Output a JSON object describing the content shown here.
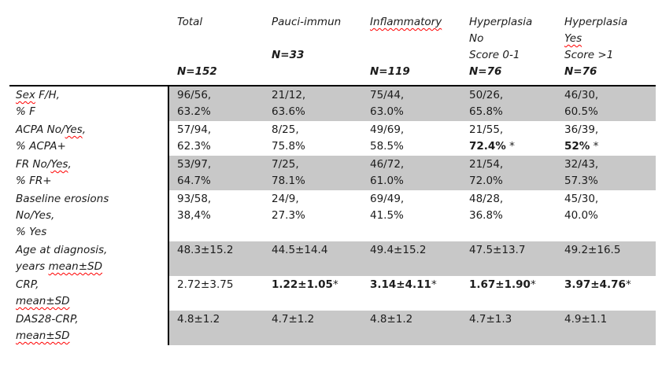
{
  "styles": {
    "page_bg": "#ffffff",
    "text_color": "#1c1c1c",
    "shade_color": "#c8c8c8",
    "squiggle_color": "#ff0000"
  },
  "table": {
    "header": {
      "label_column": "",
      "columns": [
        {
          "id": "total",
          "lines": [
            [
              {
                "t": "Total"
              }
            ],
            [],
            [],
            [
              {
                "t": "N=152",
                "b": true
              }
            ]
          ]
        },
        {
          "id": "pauci-immun",
          "lines": [
            [
              {
                "t": "Pauci-immun"
              }
            ],
            [],
            [
              {
                "t": "N=33",
                "b": true
              }
            ],
            []
          ]
        },
        {
          "id": "inflammatory",
          "lines": [
            [
              {
                "t": "Inflammatory",
                "sq": true
              }
            ],
            [],
            [],
            [
              {
                "t": "N=119",
                "b": true
              }
            ]
          ]
        },
        {
          "id": "hyperplasia-no",
          "lines": [
            [
              {
                "t": "Hyperplasia"
              }
            ],
            [
              {
                "t": "No"
              }
            ],
            [
              {
                "t": "Score 0-1"
              }
            ],
            [
              {
                "t": "N=76",
                "b": true
              }
            ]
          ]
        },
        {
          "id": "hyperplasia-yes",
          "lines": [
            [
              {
                "t": "Hyperplasia"
              }
            ],
            [
              {
                "t": "Yes",
                "sq": true
              }
            ],
            [
              {
                "t": "Score >1"
              }
            ],
            [
              {
                "t": "N=76",
                "b": true
              }
            ]
          ]
        }
      ]
    },
    "rows": [
      {
        "id": "sex",
        "shaded": true,
        "label": [
          [
            {
              "t": "Sex",
              "sq": true
            },
            {
              "t": " F/H,"
            }
          ],
          [
            {
              "t": "% F"
            }
          ]
        ],
        "cells": [
          [
            [
              {
                "t": "96/56,"
              }
            ],
            [
              {
                "t": "63.2%"
              }
            ]
          ],
          [
            [
              {
                "t": "21/12,"
              }
            ],
            [
              {
                "t": "63.6%"
              }
            ]
          ],
          [
            [
              {
                "t": "75/44,"
              }
            ],
            [
              {
                "t": "63.0%"
              }
            ]
          ],
          [
            [
              {
                "t": "50/26,"
              }
            ],
            [
              {
                "t": "65.8%"
              }
            ]
          ],
          [
            [
              {
                "t": "46/30,"
              }
            ],
            [
              {
                "t": "60.5%"
              }
            ]
          ]
        ]
      },
      {
        "id": "acpa",
        "shaded": false,
        "label": [
          [
            {
              "t": "ACPA No/"
            },
            {
              "t": "Yes",
              "sq": true
            },
            {
              "t": ","
            }
          ],
          [
            {
              "t": "% ACPA+"
            }
          ]
        ],
        "cells": [
          [
            [
              {
                "t": "57/94,"
              }
            ],
            [
              {
                "t": "62.3%"
              }
            ]
          ],
          [
            [
              {
                "t": "8/25,"
              }
            ],
            [
              {
                "t": "75.8%"
              }
            ]
          ],
          [
            [
              {
                "t": "49/69,"
              }
            ],
            [
              {
                "t": "58.5%"
              }
            ]
          ],
          [
            [
              {
                "t": "21/55,"
              }
            ],
            [
              {
                "t": "72.4%",
                "b": true
              },
              {
                "t": " *"
              }
            ]
          ],
          [
            [
              {
                "t": "36/39,"
              }
            ],
            [
              {
                "t": "52%",
                "b": true
              },
              {
                "t": " *"
              }
            ]
          ]
        ]
      },
      {
        "id": "fr",
        "shaded": true,
        "label": [
          [
            {
              "t": "FR No/"
            },
            {
              "t": "Yes",
              "sq": true
            },
            {
              "t": ","
            }
          ],
          [
            {
              "t": "% FR+"
            }
          ]
        ],
        "cells": [
          [
            [
              {
                "t": "53/97,"
              }
            ],
            [
              {
                "t": "64.7%"
              }
            ]
          ],
          [
            [
              {
                "t": "7/25,"
              }
            ],
            [
              {
                "t": "78.1%"
              }
            ]
          ],
          [
            [
              {
                "t": "46/72,"
              }
            ],
            [
              {
                "t": "61.0%"
              }
            ]
          ],
          [
            [
              {
                "t": "21/54,"
              }
            ],
            [
              {
                "t": "72.0%"
              }
            ]
          ],
          [
            [
              {
                "t": "32/43,"
              }
            ],
            [
              {
                "t": "57.3%"
              }
            ]
          ]
        ]
      },
      {
        "id": "baseline-erosions",
        "shaded": false,
        "label": [
          [
            {
              "t": "Baseline erosions"
            }
          ],
          [
            {
              "t": "No/Yes,"
            }
          ],
          [
            {
              "t": "% Yes"
            }
          ]
        ],
        "cells": [
          [
            [
              {
                "t": "93/58,"
              }
            ],
            [
              {
                "t": "38,4%"
              }
            ]
          ],
          [
            [
              {
                "t": "24/9,"
              }
            ],
            [
              {
                "t": "27.3%"
              }
            ]
          ],
          [
            [
              {
                "t": "69/49,"
              }
            ],
            [
              {
                "t": "41.5%"
              }
            ]
          ],
          [
            [
              {
                "t": "48/28,"
              }
            ],
            [
              {
                "t": "36.8%"
              }
            ]
          ],
          [
            [
              {
                "t": "45/30,"
              }
            ],
            [
              {
                "t": "40.0%"
              }
            ]
          ]
        ]
      },
      {
        "id": "age-at-diagnosis",
        "shaded": true,
        "label": [
          [
            {
              "t": "Age at diagnosis,"
            }
          ],
          [
            {
              "t": "years "
            },
            {
              "t": "mean±SD",
              "sq": true
            }
          ]
        ],
        "cells": [
          [
            [
              {
                "t": "48.3±15.2"
              }
            ]
          ],
          [
            [
              {
                "t": "44.5±14.4"
              }
            ]
          ],
          [
            [
              {
                "t": "49.4±15.2"
              }
            ]
          ],
          [
            [
              {
                "t": "47.5±13.7"
              }
            ]
          ],
          [
            [
              {
                "t": "49.2±16.5"
              }
            ]
          ]
        ]
      },
      {
        "id": "crp",
        "shaded": false,
        "label": [
          [
            {
              "t": "CRP,"
            }
          ],
          [
            {
              "t": "mean±SD",
              "sq": true
            }
          ]
        ],
        "cells": [
          [
            [
              {
                "t": "2.72±3.75"
              }
            ]
          ],
          [
            [
              {
                "t": "1.22±1.05",
                "b": true
              },
              {
                "t": "*"
              }
            ]
          ],
          [
            [
              {
                "t": "3.14±4.11",
                "b": true
              },
              {
                "t": "*"
              }
            ]
          ],
          [
            [
              {
                "t": "1.67±1.90",
                "b": true
              },
              {
                "t": "*"
              }
            ]
          ],
          [
            [
              {
                "t": "3.97±4.76",
                "b": true
              },
              {
                "t": "*"
              }
            ]
          ]
        ]
      },
      {
        "id": "das28-crp",
        "shaded": true,
        "label": [
          [
            {
              "t": "DAS28-CRP,"
            }
          ],
          [
            {
              "t": "mean±SD",
              "sq": true
            }
          ]
        ],
        "cells": [
          [
            [
              {
                "t": "4.8±1.2"
              }
            ]
          ],
          [
            [
              {
                "t": "4.7±1.2"
              }
            ]
          ],
          [
            [
              {
                "t": "4.8±1.2"
              }
            ]
          ],
          [
            [
              {
                "t": "4.7±1.3"
              }
            ]
          ],
          [
            [
              {
                "t": "4.9±1.1"
              }
            ]
          ]
        ]
      }
    ]
  }
}
